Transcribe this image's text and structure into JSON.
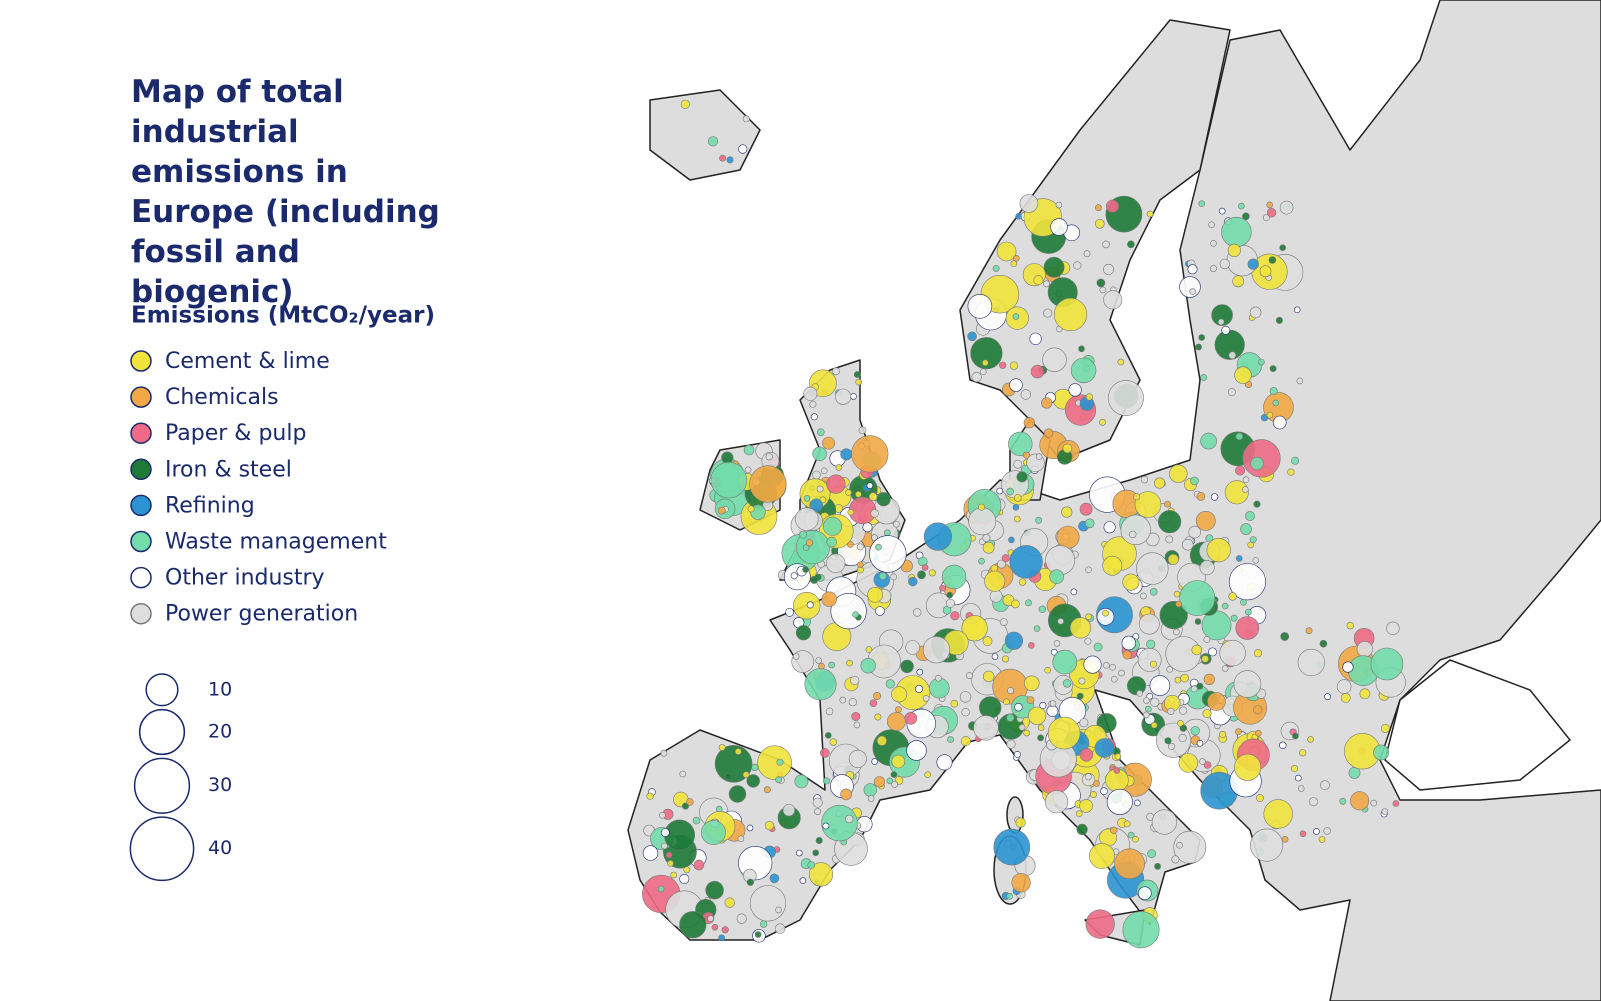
{
  "title": "Map of total industrial emissions in Europe (including fossil and biogenic)",
  "legend": {
    "title": "Emissions (MtCO₂/year)",
    "items": [
      {
        "label": "Cement & lime",
        "color": "#f1e33c",
        "border": "#1a2a6c"
      },
      {
        "label": "Chemicals",
        "color": "#f2a945",
        "border": "#1a2a6c"
      },
      {
        "label": "Paper & pulp",
        "color": "#ee6a86",
        "border": "#1a2a6c"
      },
      {
        "label": "Iron & steel",
        "color": "#1e7a36",
        "border": "#1a2a6c"
      },
      {
        "label": "Refining",
        "color": "#2b93d1",
        "border": "#1a2a6c"
      },
      {
        "label": "Waste management",
        "color": "#72dcab",
        "border": "#1a2a6c"
      },
      {
        "label": "Other industry",
        "color": "#ffffff",
        "border": "#1a2a6c"
      },
      {
        "label": "Power generation",
        "color": "#dedede",
        "border": "#777777"
      }
    ]
  },
  "size_legend": {
    "values": [
      10,
      20,
      30,
      40
    ]
  }
}
